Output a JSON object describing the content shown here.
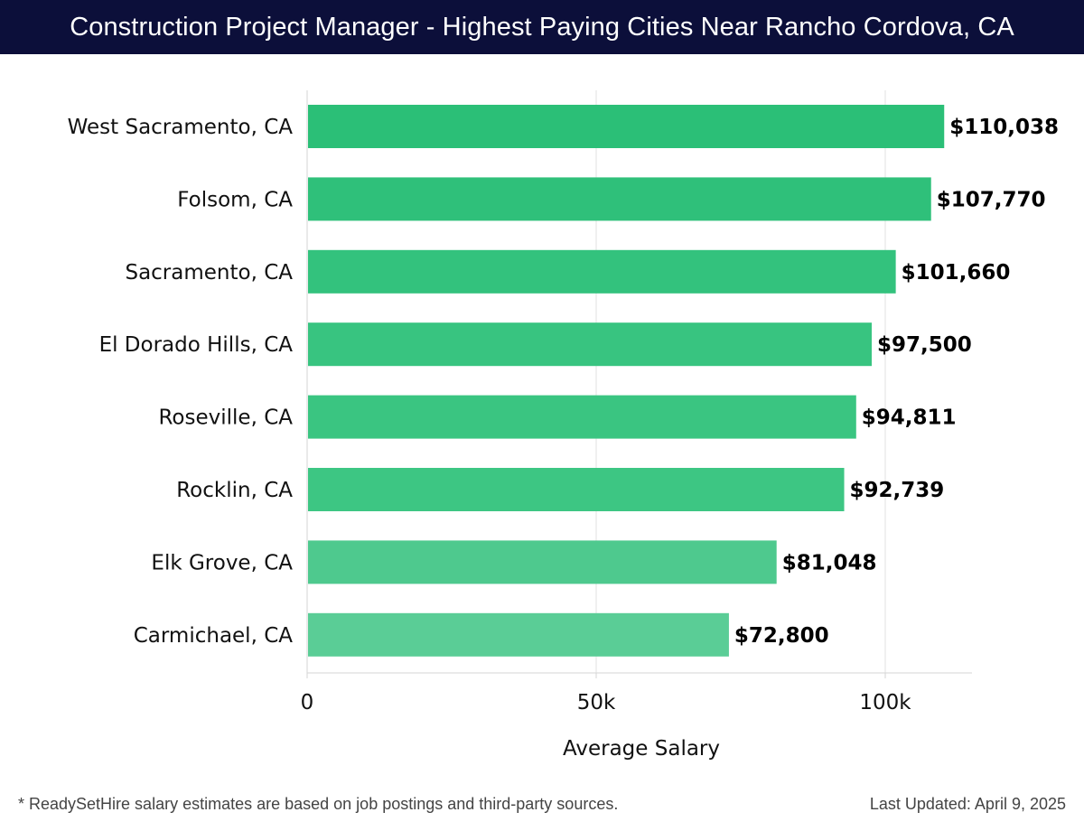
{
  "header": {
    "title": "Construction Project Manager - Highest Paying Cities Near Rancho Cordova, CA"
  },
  "chart_data": {
    "type": "bar",
    "orientation": "horizontal",
    "title": "Construction Project Manager - Highest Paying Cities Near Rancho Cordova, CA",
    "xlabel": "Average Salary",
    "ylabel": "",
    "xlim": [
      0,
      115000
    ],
    "x_ticks": [
      0,
      50000,
      100000
    ],
    "x_tick_labels": [
      "0",
      "50k",
      "100k"
    ],
    "grid": true,
    "categories": [
      "West Sacramento, CA",
      "Folsom, CA",
      "Sacramento, CA",
      "El Dorado Hills, CA",
      "Roseville, CA",
      "Rocklin, CA",
      "Elk Grove, CA",
      "Carmichael, CA"
    ],
    "values": [
      110038,
      107770,
      101660,
      97500,
      94811,
      92739,
      81048,
      72800
    ],
    "value_labels": [
      "$110,038",
      "$107,770",
      "$101,660",
      "$97,500",
      "$94,811",
      "$92,739",
      "$81,048",
      "$72,800"
    ],
    "bar_colors": [
      "#2bbf77",
      "#2fc07a",
      "#33c27d",
      "#38c480",
      "#3ac581",
      "#3dc683",
      "#4ec98e",
      "#5acd96"
    ]
  },
  "footer": {
    "note": "* ReadySetHire salary estimates are based on job postings and third-party sources.",
    "updated": "Last Updated: April 9, 2025"
  }
}
